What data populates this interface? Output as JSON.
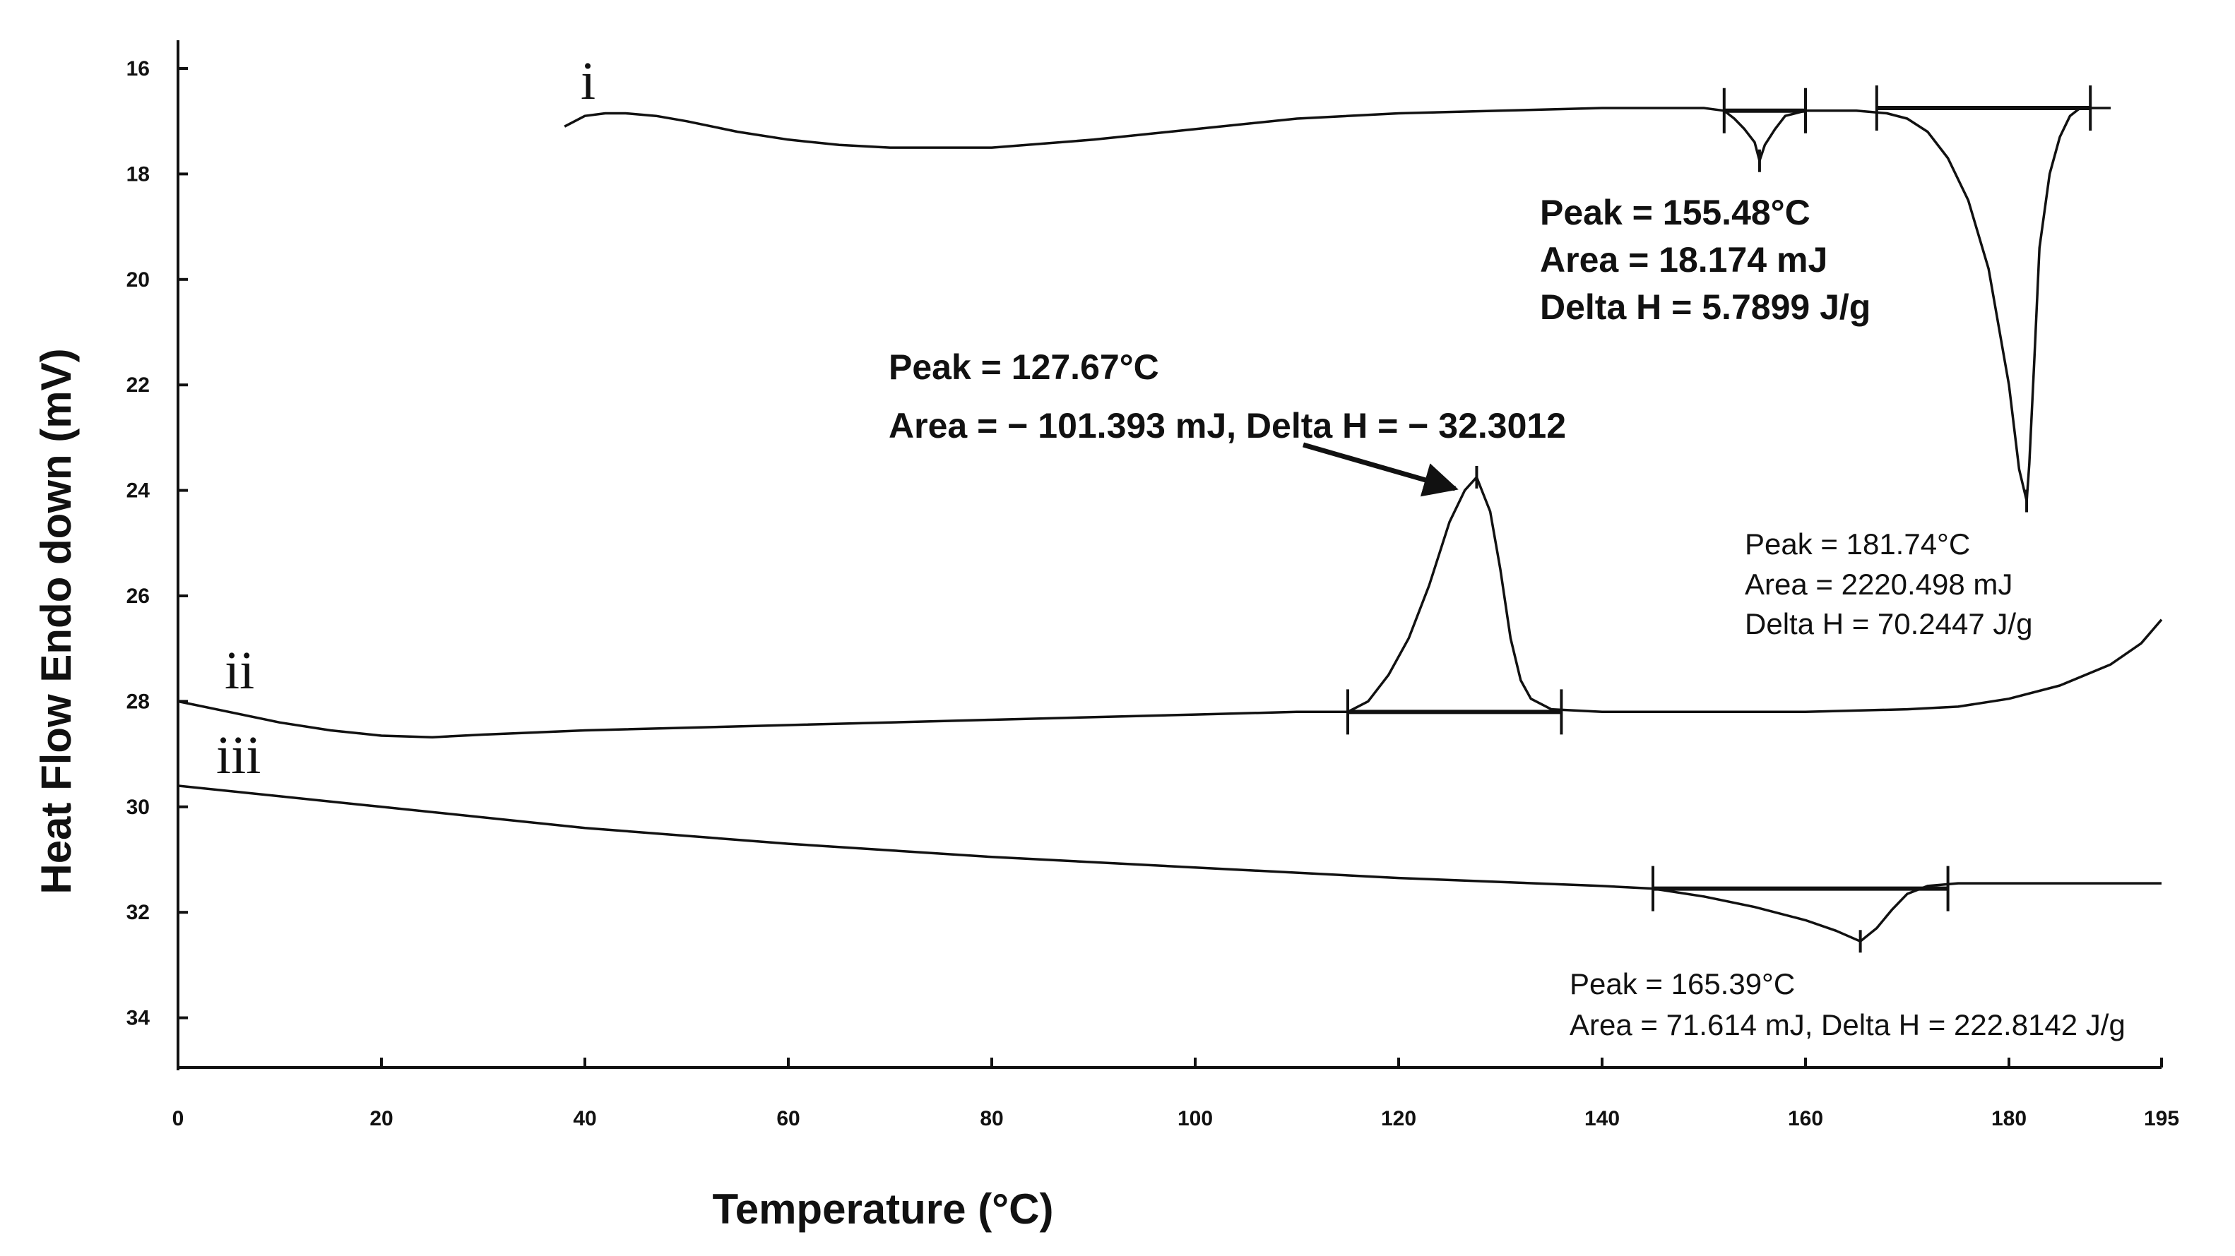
{
  "chart_data": {
    "type": "line",
    "xlabel": "Temperature (°C)",
    "ylabel": "Heat Flow Endo down (mV)",
    "xlim": [
      0,
      195
    ],
    "ylim": [
      15,
      35
    ],
    "y_inverted": true,
    "x_ticks": [
      "0",
      "20",
      "40",
      "60",
      "80",
      "100",
      "120",
      "140",
      "160",
      "180",
      "195"
    ],
    "y_ticks": [
      "16",
      "18",
      "20",
      "22",
      "24",
      "26",
      "28",
      "30",
      "32",
      "34"
    ],
    "series": [
      {
        "name": "i",
        "points": [
          [
            38,
            17.1
          ],
          [
            39,
            17.0
          ],
          [
            40,
            16.9
          ],
          [
            42,
            16.85
          ],
          [
            44,
            16.85
          ],
          [
            47,
            16.9
          ],
          [
            50,
            17.0
          ],
          [
            55,
            17.2
          ],
          [
            60,
            17.35
          ],
          [
            65,
            17.45
          ],
          [
            70,
            17.5
          ],
          [
            80,
            17.5
          ],
          [
            90,
            17.35
          ],
          [
            100,
            17.15
          ],
          [
            110,
            16.95
          ],
          [
            120,
            16.85
          ],
          [
            130,
            16.8
          ],
          [
            140,
            16.75
          ],
          [
            150,
            16.75
          ],
          [
            152,
            16.8
          ],
          [
            153,
            16.95
          ],
          [
            154,
            17.15
          ],
          [
            155,
            17.4
          ],
          [
            155.48,
            17.75
          ],
          [
            156,
            17.45
          ],
          [
            157,
            17.15
          ],
          [
            158,
            16.9
          ],
          [
            160,
            16.8
          ],
          [
            165,
            16.8
          ],
          [
            168,
            16.85
          ],
          [
            170,
            16.95
          ],
          [
            172,
            17.2
          ],
          [
            174,
            17.7
          ],
          [
            176,
            18.5
          ],
          [
            178,
            19.8
          ],
          [
            180,
            22.0
          ],
          [
            181,
            23.6
          ],
          [
            181.74,
            24.2
          ],
          [
            182,
            23.5
          ],
          [
            182.5,
            21.5
          ],
          [
            183,
            19.4
          ],
          [
            184,
            18.0
          ],
          [
            185,
            17.3
          ],
          [
            186,
            16.9
          ],
          [
            187,
            16.75
          ],
          [
            190,
            16.75
          ]
        ]
      },
      {
        "name": "ii",
        "points": [
          [
            0,
            28.0
          ],
          [
            5,
            28.2
          ],
          [
            10,
            28.4
          ],
          [
            15,
            28.55
          ],
          [
            20,
            28.65
          ],
          [
            25,
            28.68
          ],
          [
            30,
            28.63
          ],
          [
            40,
            28.55
          ],
          [
            60,
            28.45
          ],
          [
            80,
            28.35
          ],
          [
            100,
            28.25
          ],
          [
            110,
            28.2
          ],
          [
            115,
            28.2
          ],
          [
            117,
            28.0
          ],
          [
            119,
            27.5
          ],
          [
            121,
            26.8
          ],
          [
            123,
            25.8
          ],
          [
            125,
            24.6
          ],
          [
            126.5,
            24.0
          ],
          [
            127.67,
            23.75
          ],
          [
            129,
            24.4
          ],
          [
            130,
            25.5
          ],
          [
            131,
            26.8
          ],
          [
            132,
            27.6
          ],
          [
            133,
            27.95
          ],
          [
            135,
            28.15
          ],
          [
            140,
            28.2
          ],
          [
            150,
            28.2
          ],
          [
            160,
            28.2
          ],
          [
            170,
            28.15
          ],
          [
            175,
            28.1
          ],
          [
            180,
            27.95
          ],
          [
            185,
            27.7
          ],
          [
            190,
            27.3
          ],
          [
            193,
            26.9
          ],
          [
            195,
            26.45
          ]
        ]
      },
      {
        "name": "iii",
        "points": [
          [
            0,
            29.6
          ],
          [
            20,
            30.0
          ],
          [
            40,
            30.4
          ],
          [
            60,
            30.7
          ],
          [
            80,
            30.95
          ],
          [
            100,
            31.15
          ],
          [
            120,
            31.35
          ],
          [
            140,
            31.5
          ],
          [
            145,
            31.55
          ],
          [
            150,
            31.7
          ],
          [
            155,
            31.9
          ],
          [
            160,
            32.15
          ],
          [
            163,
            32.35
          ],
          [
            165.39,
            32.55
          ],
          [
            167,
            32.3
          ],
          [
            168.5,
            31.95
          ],
          [
            170,
            31.65
          ],
          [
            172,
            31.5
          ],
          [
            175,
            31.45
          ],
          [
            180,
            31.45
          ],
          [
            190,
            31.45
          ],
          [
            195,
            31.45
          ]
        ]
      }
    ],
    "baselines": [
      {
        "curve": "i",
        "x": [
          152,
          160
        ],
        "y": 16.8
      },
      {
        "curve": "i",
        "x": [
          167,
          188
        ],
        "y": 16.75
      },
      {
        "curve": "ii",
        "x": [
          115,
          136
        ],
        "y": 28.2
      },
      {
        "curve": "iii",
        "x": [
          145,
          174
        ],
        "y": 31.55
      }
    ],
    "peak_markers": [
      {
        "curve": "i",
        "x": 155.48,
        "y": 17.75
      },
      {
        "curve": "i",
        "x": 181.74,
        "y": 24.2
      },
      {
        "curve": "ii",
        "x": 127.67,
        "y": 23.75
      },
      {
        "curve": "iii",
        "x": 165.39,
        "y": 32.55
      }
    ],
    "curve_labels": [
      "i",
      "ii",
      "iii"
    ],
    "annotations": {
      "a1": {
        "lines": [
          "Peak = 155.48°C",
          "Area = 18.174 mJ",
          "Delta H = 5.7899 J/g"
        ]
      },
      "a2": {
        "lines": [
          "Peak = 127.67°C",
          "Area = − 101.393 mJ, Delta H = − 32.3012"
        ]
      },
      "a3": {
        "lines": [
          "Peak = 181.74°C",
          "Area = 2220.498 mJ",
          "Delta H = 70.2447 J/g"
        ]
      },
      "a4": {
        "lines": [
          "Peak = 165.39°C",
          "Area = 71.614 mJ, Delta H = 222.8142 J/g"
        ]
      }
    }
  }
}
